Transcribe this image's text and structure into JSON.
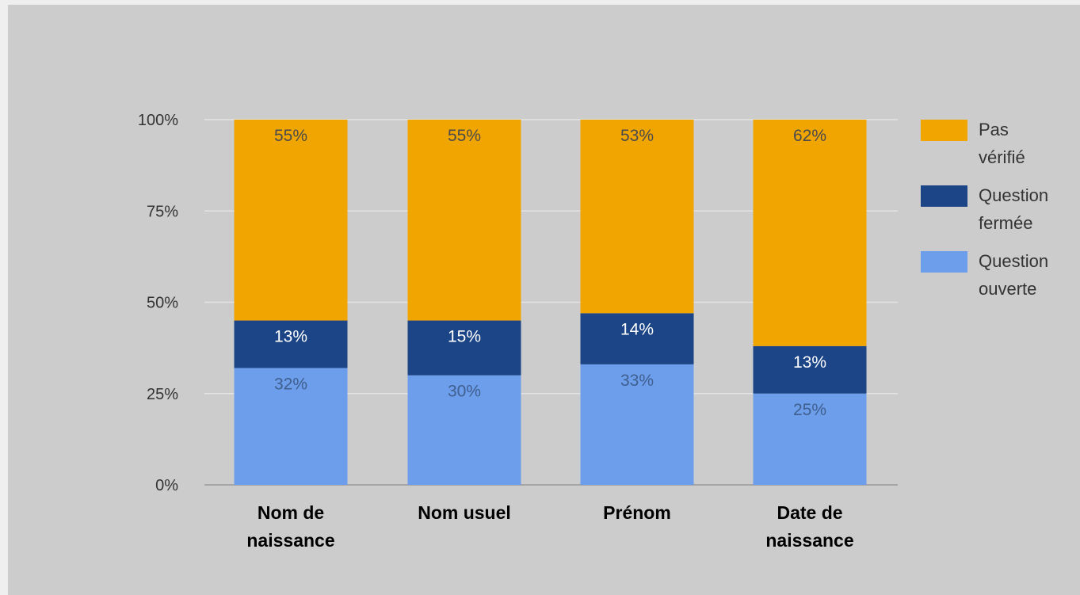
{
  "chart_data": {
    "type": "bar",
    "stacked": true,
    "categories": [
      [
        "Nom de",
        "naissance"
      ],
      [
        "Nom usuel"
      ],
      [
        "Prénom"
      ],
      [
        "Date de",
        "naissance"
      ]
    ],
    "series": [
      {
        "name": [
          "Question",
          "ouverte"
        ],
        "values": [
          32,
          30,
          33,
          25
        ],
        "labels": [
          "32%",
          "30%",
          "33%",
          "25%"
        ],
        "color": "#6d9eeb"
      },
      {
        "name": [
          "Question",
          "fermée"
        ],
        "values": [
          13,
          15,
          14,
          13
        ],
        "labels": [
          "13%",
          "15%",
          "14%",
          "13%"
        ],
        "color": "#1c4587"
      },
      {
        "name": [
          "Pas",
          "vérifié"
        ],
        "values": [
          55,
          55,
          53,
          62
        ],
        "labels": [
          "55%",
          "55%",
          "53%",
          "62%"
        ],
        "color": "#f1a500"
      }
    ],
    "y_ticks": [
      {
        "value": 0,
        "label": "0%"
      },
      {
        "value": 25,
        "label": "25%"
      },
      {
        "value": 50,
        "label": "50%"
      },
      {
        "value": 75,
        "label": "75%"
      },
      {
        "value": 100,
        "label": "100%"
      }
    ],
    "ylim": [
      0,
      100
    ],
    "grid": true,
    "legend_position": "right",
    "title": "",
    "xlabel": "",
    "ylabel": "",
    "colors": {
      "background": "#cccccc",
      "gridline": "#e3e3e3",
      "axis": "#999999"
    }
  }
}
